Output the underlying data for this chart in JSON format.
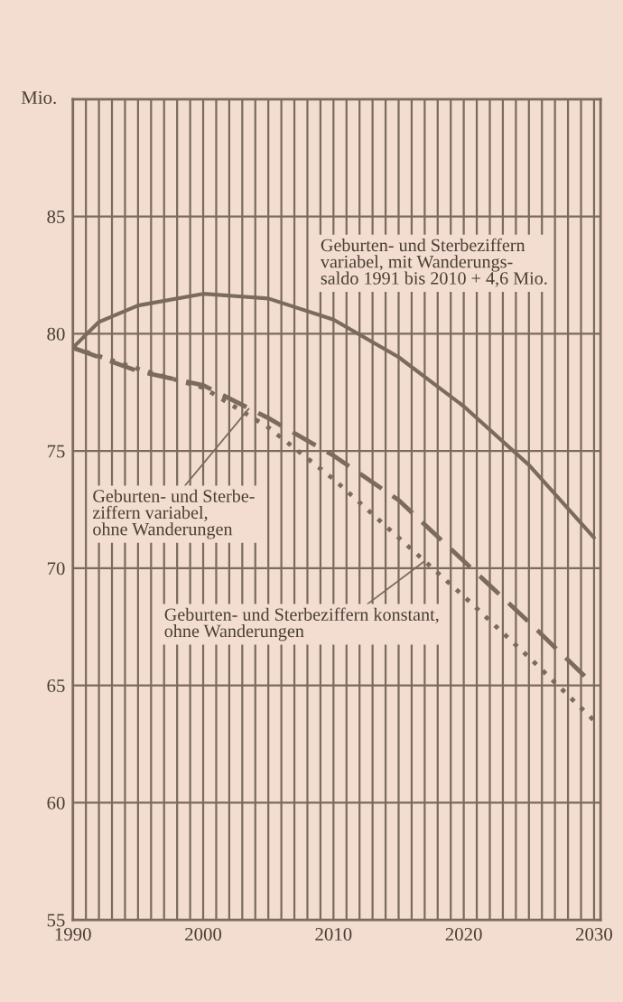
{
  "chart_data": {
    "type": "line",
    "ylabel": "Mio.",
    "x": [
      1990,
      1992,
      1995,
      2000,
      2005,
      2010,
      2015,
      2020,
      2025,
      2030
    ],
    "series": [
      {
        "color": "#7a6b5d",
        "line_style": "solid",
        "values": [
          79.4,
          80.5,
          81.2,
          81.7,
          81.5,
          80.6,
          79.0,
          76.9,
          74.4,
          71.3
        ]
      },
      {
        "color": "#7a6b5d",
        "line_style": "dashed",
        "x": [
          1990,
          1995,
          2000,
          2005,
          2010,
          2015,
          2020,
          2025,
          2030
        ],
        "values": [
          79.4,
          78.4,
          77.8,
          76.4,
          74.8,
          72.9,
          70.3,
          67.7,
          65.0
        ]
      },
      {
        "color": "#7a6b5d",
        "line_style": "dotted",
        "x": [
          1990,
          1995,
          2000,
          2005,
          2010,
          2015,
          2020,
          2025,
          2030
        ],
        "values": [
          79.4,
          78.5,
          77.7,
          76.0,
          73.8,
          71.3,
          68.8,
          66.2,
          63.5
        ]
      }
    ],
    "xlim": [
      1990,
      2030.5
    ],
    "ylim": [
      55,
      90
    ],
    "xticks": [
      1990,
      {
        "value": 1991,
        "label": null
      },
      {
        "value": 1992,
        "label": null
      },
      {
        "value": 1993,
        "label": null
      },
      {
        "value": 1994,
        "label": null
      },
      {
        "value": 1995,
        "label": null
      },
      {
        "value": 1996,
        "label": null
      },
      {
        "value": 1997,
        "label": null
      },
      {
        "value": 1998,
        "label": null
      },
      {
        "value": 1999,
        "label": null
      },
      2000,
      {
        "value": 2001,
        "label": null
      },
      {
        "value": 2002,
        "label": null
      },
      {
        "value": 2003,
        "label": null
      },
      {
        "value": 2004,
        "label": null
      },
      {
        "value": 2005,
        "label": null
      },
      {
        "value": 2006,
        "label": null
      },
      {
        "value": 2007,
        "label": null
      },
      {
        "value": 2008,
        "label": null
      },
      {
        "value": 2009,
        "label": null
      },
      2010,
      {
        "value": 2011,
        "label": null
      },
      {
        "value": 2012,
        "label": null
      },
      {
        "value": 2013,
        "label": null
      },
      {
        "value": 2014,
        "label": null
      },
      {
        "value": 2015,
        "label": null
      },
      {
        "value": 2016,
        "label": null
      },
      {
        "value": 2017,
        "label": null
      },
      {
        "value": 2018,
        "label": null
      },
      {
        "value": 2019,
        "label": null
      },
      2020,
      {
        "value": 2021,
        "label": null
      },
      {
        "value": 2022,
        "label": null
      },
      {
        "value": 2023,
        "label": null
      },
      {
        "value": 2024,
        "label": null
      },
      {
        "value": 2025,
        "label": null
      },
      {
        "value": 2026,
        "label": null
      },
      {
        "value": 2027,
        "label": null
      },
      {
        "value": 2028,
        "label": null
      },
      {
        "value": 2029,
        "label": null
      },
      2030
    ],
    "yticks": [
      55,
      60,
      65,
      70,
      75,
      80,
      85
    ],
    "grid": true,
    "legend": false,
    "annotations": [
      "Geburten- und Sterbeziffern\nvariabel, mit Wanderungs-\nsaldo 1991 bis 2010 + 4,6 Mio.",
      {
        "text": "Geburten- und Sterbe-\nziffern variabel,\nohne Wanderungen",
        "x": 2003.5,
        "y": 76.8
      },
      {
        "text": "Geburten- und Sterbeziffern konstant,\nohne Wanderungen",
        "x": 2017,
        "y": 70.3
      }
    ]
  }
}
